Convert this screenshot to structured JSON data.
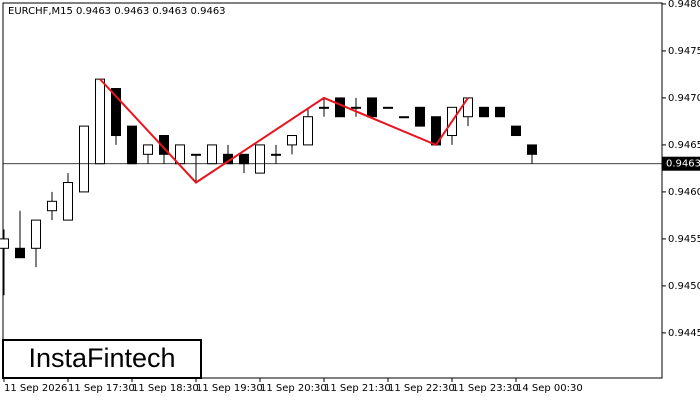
{
  "chart_data": {
    "type": "candlestick",
    "title": "EURCHF,M15  0.9463 0.9463 0.9463 0.9463",
    "logo": "InstaFintech",
    "categories": [
      "11 Sep 2026",
      null,
      null,
      null,
      "11 Sep 17:30",
      null,
      null,
      null,
      "11 Sep 18:30",
      null,
      null,
      null,
      "11 Sep 19:30",
      null,
      null,
      null,
      "11 Sep 20:30",
      null,
      null,
      null,
      "11 Sep 21:30",
      null,
      null,
      null,
      "11 Sep 22:30",
      null,
      null,
      null,
      "11 Sep 23:30",
      null,
      null,
      null,
      "14 Sep 00:30",
      null
    ],
    "open": [
      0.9454,
      0.9454,
      0.9454,
      0.9458,
      0.9457,
      0.946,
      0.9463,
      0.9471,
      0.9467,
      0.9464,
      0.9466,
      0.9463,
      0.9464,
      0.9463,
      0.9464,
      0.9464,
      0.9462,
      0.9464,
      0.9465,
      0.9465,
      0.9469,
      0.947,
      0.9469,
      0.947,
      0.9469,
      0.9468,
      0.9469,
      0.9468,
      0.9466,
      0.9468,
      0.9469,
      0.9469,
      0.9467,
      0.9465
    ],
    "high": [
      0.9456,
      0.9458,
      0.9457,
      0.946,
      0.9462,
      0.9467,
      0.9472,
      0.9471,
      0.9467,
      0.9465,
      0.9466,
      0.9465,
      0.9464,
      0.9465,
      0.9465,
      0.9464,
      0.9465,
      0.9465,
      0.9466,
      0.9469,
      0.947,
      0.947,
      0.947,
      0.947,
      0.9469,
      0.9468,
      0.9469,
      0.9468,
      0.9469,
      0.947,
      0.9469,
      0.9469,
      0.9467,
      0.9465
    ],
    "low": [
      0.9449,
      0.9453,
      0.9452,
      0.9457,
      0.9457,
      0.946,
      0.9463,
      0.9465,
      0.9463,
      0.9463,
      0.9463,
      0.9463,
      0.9461,
      0.9463,
      0.9463,
      0.9462,
      0.9462,
      0.9463,
      0.9464,
      0.9465,
      0.9468,
      0.9468,
      0.9468,
      0.9468,
      0.9469,
      0.9468,
      0.9467,
      0.9465,
      0.9465,
      0.9467,
      0.9468,
      0.9468,
      0.9466,
      0.9463
    ],
    "close": [
      0.9455,
      0.9453,
      0.9457,
      0.9459,
      0.9461,
      0.9467,
      0.9472,
      0.9466,
      0.9463,
      0.9465,
      0.9464,
      0.9465,
      0.9464,
      0.9465,
      0.9463,
      0.9463,
      0.9465,
      0.9464,
      0.9466,
      0.9468,
      0.9469,
      0.9468,
      0.9469,
      0.9468,
      0.9469,
      0.9468,
      0.9467,
      0.9465,
      0.9469,
      0.947,
      0.9468,
      0.9468,
      0.9466,
      0.9464
    ],
    "last_price": 0.9463,
    "pattern_color": "#e8141e",
    "pattern_index": [
      6,
      12,
      20,
      27,
      29
    ],
    "pattern_values": [
      0.9472,
      0.9461,
      0.947,
      0.9465,
      0.947
    ],
    "ylim": [
      0.94402,
      0.94801
    ],
    "yticks": [
      0.9445,
      {
        "value": 0.945,
        "label": "0.9450"
      },
      0.9455,
      {
        "value": 0.946,
        "label": "0.9460"
      },
      0.9465,
      {
        "value": 0.947,
        "label": "0.9470"
      },
      0.9475,
      {
        "value": 0.948,
        "label": "0.9480"
      }
    ]
  }
}
